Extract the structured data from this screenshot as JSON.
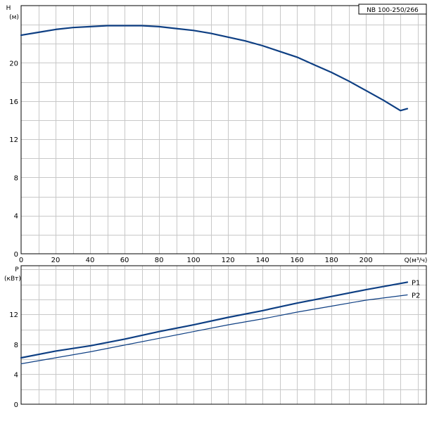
{
  "chart_data": [
    {
      "type": "line",
      "title": "NB 100-250/266",
      "ylabel": "H",
      "yunit": "(м)",
      "xlabel": "Q(м³/ч)",
      "xlim": [
        0,
        235
      ],
      "ylim": [
        0,
        26
      ],
      "xticks": [
        0,
        20,
        40,
        60,
        80,
        100,
        120,
        140,
        160,
        180,
        200
      ],
      "yticks": [
        0,
        4,
        8,
        12,
        16,
        20
      ],
      "grid": true,
      "series": [
        {
          "x": [
            0,
            10,
            20,
            30,
            40,
            50,
            60,
            70,
            80,
            90,
            100,
            110,
            120,
            130,
            140,
            150,
            160,
            170,
            180,
            190,
            200,
            210,
            220,
            224
          ],
          "y": [
            22.9,
            23.2,
            23.5,
            23.7,
            23.8,
            23.9,
            23.9,
            23.9,
            23.8,
            23.6,
            23.4,
            23.1,
            22.7,
            22.3,
            21.8,
            21.2,
            20.6,
            19.8,
            19.0,
            18.1,
            17.1,
            16.1,
            15.0,
            15.2
          ]
        }
      ]
    },
    {
      "type": "line",
      "ylabel": "P",
      "yunit": "(кВт)",
      "xlim": [
        0,
        235
      ],
      "ylim": [
        0,
        18.5
      ],
      "xticks": [
        0,
        20,
        40,
        60,
        80,
        100,
        120,
        140,
        160,
        180,
        200
      ],
      "yticks": [
        0,
        4,
        8,
        12
      ],
      "grid": true,
      "series": [
        {
          "name": "P1",
          "x": [
            0,
            20,
            40,
            60,
            80,
            100,
            120,
            140,
            160,
            180,
            200,
            224
          ],
          "y": [
            6.2,
            7.1,
            7.8,
            8.7,
            9.7,
            10.6,
            11.6,
            12.5,
            13.5,
            14.4,
            15.3,
            16.3
          ]
        },
        {
          "name": "P2",
          "x": [
            0,
            20,
            40,
            60,
            80,
            100,
            120,
            140,
            160,
            180,
            200,
            224
          ],
          "y": [
            5.4,
            6.2,
            7.0,
            7.9,
            8.8,
            9.7,
            10.6,
            11.4,
            12.3,
            13.1,
            13.9,
            14.6
          ]
        }
      ]
    }
  ]
}
